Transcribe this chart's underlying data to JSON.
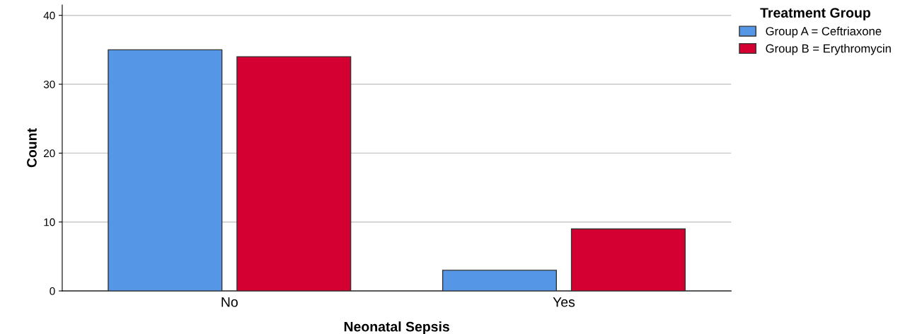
{
  "chart_data": {
    "type": "bar",
    "xlabel": "Neonatal Sepsis",
    "ylabel": "Count",
    "legend_title": "Treatment Group",
    "categories": [
      "No",
      "Yes"
    ],
    "series": [
      {
        "name": "Group A = Ceftriaxone",
        "color": "#5596e6",
        "values": [
          35,
          3
        ]
      },
      {
        "name": "Group B = Erythromycin",
        "color": "#d50032",
        "values": [
          34,
          9
        ]
      }
    ],
    "ylim": [
      0,
      41.5
    ],
    "yticks": [
      0,
      10,
      20,
      30,
      40
    ],
    "grid": "y",
    "legend": "top right"
  }
}
